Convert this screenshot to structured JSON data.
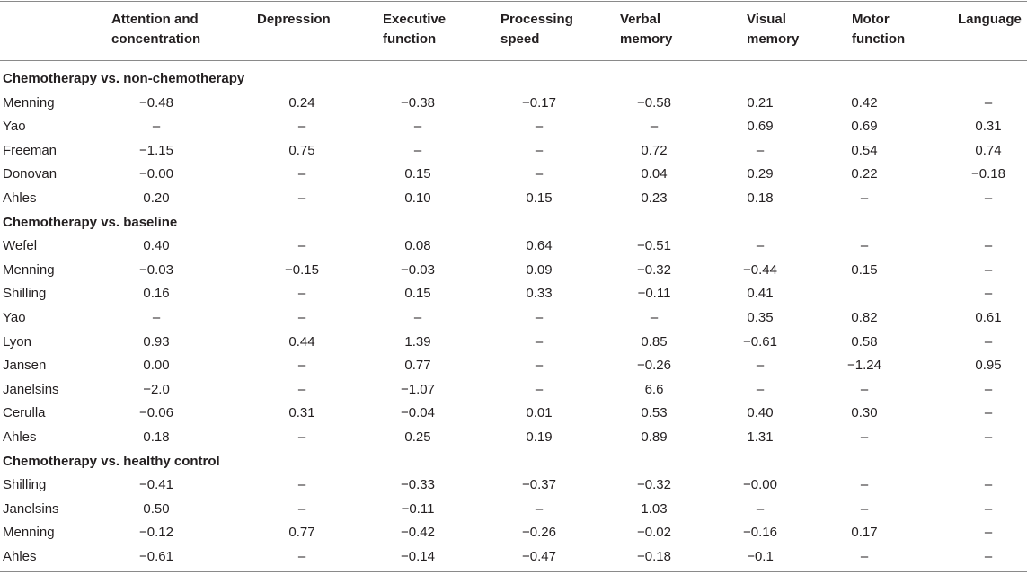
{
  "columns": [
    {
      "key": "attention",
      "label_line1": "Attention and",
      "label_line2": "concentration"
    },
    {
      "key": "depression",
      "label_line1": "Depression",
      "label_line2": ""
    },
    {
      "key": "executive",
      "label_line1": "Executive",
      "label_line2": "function"
    },
    {
      "key": "processing",
      "label_line1": "Processing",
      "label_line2": "speed"
    },
    {
      "key": "verbal",
      "label_line1": "Verbal",
      "label_line2": "memory"
    },
    {
      "key": "visual",
      "label_line1": "Visual",
      "label_line2": "memory"
    },
    {
      "key": "motor",
      "label_line1": "Motor",
      "label_line2": "function"
    },
    {
      "key": "language",
      "label_line1": "Language",
      "label_line2": ""
    }
  ],
  "sections": [
    {
      "title": "Chemotherapy vs. non-chemotherapy",
      "rows": [
        {
          "study": "Menning",
          "values": [
            "−0.48",
            "0.24",
            "−0.38",
            "−0.17",
            "−0.58",
            "0.21",
            "0.42",
            "–"
          ]
        },
        {
          "study": "Yao",
          "values": [
            "–",
            "–",
            "–",
            "–",
            "–",
            "0.69",
            "0.69",
            "0.31"
          ]
        },
        {
          "study": "Freeman",
          "values": [
            "−1.15",
            "0.75",
            "–",
            "–",
            "0.72",
            "–",
            "0.54",
            "0.74"
          ]
        },
        {
          "study": "Donovan",
          "values": [
            "−0.00",
            "–",
            "0.15",
            "–",
            "0.04",
            "0.29",
            "0.22",
            "−0.18"
          ]
        },
        {
          "study": "Ahles",
          "values": [
            "0.20",
            "–",
            "0.10",
            "0.15",
            "0.23",
            "0.18",
            "–",
            "–"
          ]
        }
      ]
    },
    {
      "title": "Chemotherapy vs. baseline",
      "rows": [
        {
          "study": "Wefel",
          "values": [
            "0.40",
            "–",
            "0.08",
            "0.64",
            "−0.51",
            "–",
            "–",
            "–"
          ]
        },
        {
          "study": "Menning",
          "values": [
            "−0.03",
            "−0.15",
            "−0.03",
            "0.09",
            "−0.32",
            "−0.44",
            "0.15",
            "–"
          ]
        },
        {
          "study": "Shilling",
          "values": [
            "0.16",
            "–",
            "0.15",
            "0.33",
            "−0.11",
            "0.41",
            "",
            "–"
          ]
        },
        {
          "study": "Yao",
          "values": [
            "–",
            "–",
            "–",
            "–",
            "–",
            "0.35",
            "0.82",
            "0.61"
          ]
        },
        {
          "study": "Lyon",
          "values": [
            "0.93",
            "0.44",
            "1.39",
            "–",
            "0.85",
            "−0.61",
            "0.58",
            "–"
          ]
        },
        {
          "study": "Jansen",
          "values": [
            "0.00",
            "–",
            "0.77",
            "–",
            "−0.26",
            "–",
            "−1.24",
            "0.95"
          ]
        },
        {
          "study": "Janelsins",
          "values": [
            "−2.0",
            "–",
            "−1.07",
            "–",
            "6.6",
            "–",
            "–",
            "–"
          ]
        },
        {
          "study": "Cerulla",
          "values": [
            "−0.06",
            "0.31",
            "−0.04",
            "0.01",
            "0.53",
            "0.40",
            "0.30",
            "–"
          ]
        },
        {
          "study": "Ahles",
          "values": [
            "0.18",
            "–",
            "0.25",
            "0.19",
            "0.89",
            "1.31",
            "–",
            "–"
          ]
        }
      ]
    },
    {
      "title": "Chemotherapy vs. healthy control",
      "rows": [
        {
          "study": "Shilling",
          "values": [
            "−0.41",
            "–",
            "−0.33",
            "−0.37",
            "−0.32",
            "−0.00",
            "–",
            "–"
          ]
        },
        {
          "study": "Janelsins",
          "values": [
            "0.50",
            "–",
            "−0.11",
            "–",
            "1.03",
            "–",
            "–",
            "–"
          ]
        },
        {
          "study": "Menning",
          "values": [
            "−0.12",
            "0.77",
            "−0.42",
            "−0.26",
            "−0.02",
            "−0.16",
            "0.17",
            "–"
          ]
        },
        {
          "study": "Ahles",
          "values": [
            "−0.61",
            "–",
            "−0.14",
            "−0.47",
            "−0.18",
            "−0.1",
            "–",
            "–"
          ]
        }
      ]
    }
  ]
}
